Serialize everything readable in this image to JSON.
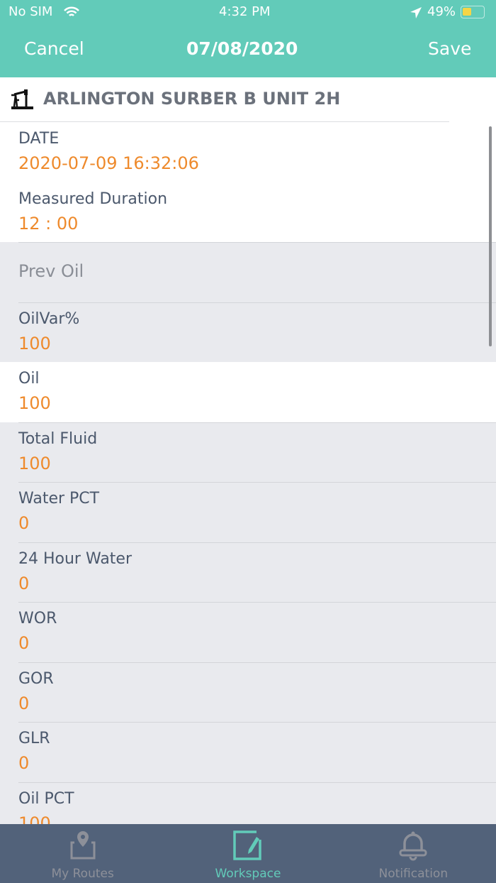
{
  "status": {
    "carrier": "No SIM",
    "time": "4:32 PM",
    "battery": "49%"
  },
  "nav": {
    "cancel": "Cancel",
    "title": "07/08/2020",
    "save": "Save"
  },
  "well": {
    "name": "ARLINGTON SURBER B UNIT 2H",
    "icon": "pumpjack-icon"
  },
  "fields": [
    {
      "label": "DATE",
      "value": "2020-07-09 16:32:06",
      "bg": "white"
    },
    {
      "label": "Measured Duration",
      "value": "12 : 00",
      "bg": "white"
    },
    {
      "label": "Prev Oil",
      "value": null,
      "bg": "grey"
    },
    {
      "label": "OilVar%",
      "value": "100",
      "bg": "grey"
    },
    {
      "label": "Oil",
      "value": "100",
      "bg": "white"
    },
    {
      "label": "Total Fluid",
      "value": "100",
      "bg": "grey"
    },
    {
      "label": "Water PCT",
      "value": "0",
      "bg": "grey"
    },
    {
      "label": "24 Hour Water",
      "value": "0",
      "bg": "grey"
    },
    {
      "label": "WOR",
      "value": "0",
      "bg": "grey"
    },
    {
      "label": "GOR",
      "value": "0",
      "bg": "grey"
    },
    {
      "label": "GLR",
      "value": "0",
      "bg": "grey"
    },
    {
      "label": "Oil PCT",
      "value": "100",
      "bg": "grey"
    }
  ],
  "tabs": [
    {
      "label": "My Routes",
      "icon": "map-pin-icon",
      "active": false
    },
    {
      "label": "Workspace",
      "icon": "edit-icon",
      "active": true
    },
    {
      "label": "Notification",
      "icon": "bell-icon",
      "active": false
    }
  ],
  "colors": {
    "accent": "#62cbb9",
    "value": "#ee8a2c",
    "tabbar": "#52627a"
  }
}
